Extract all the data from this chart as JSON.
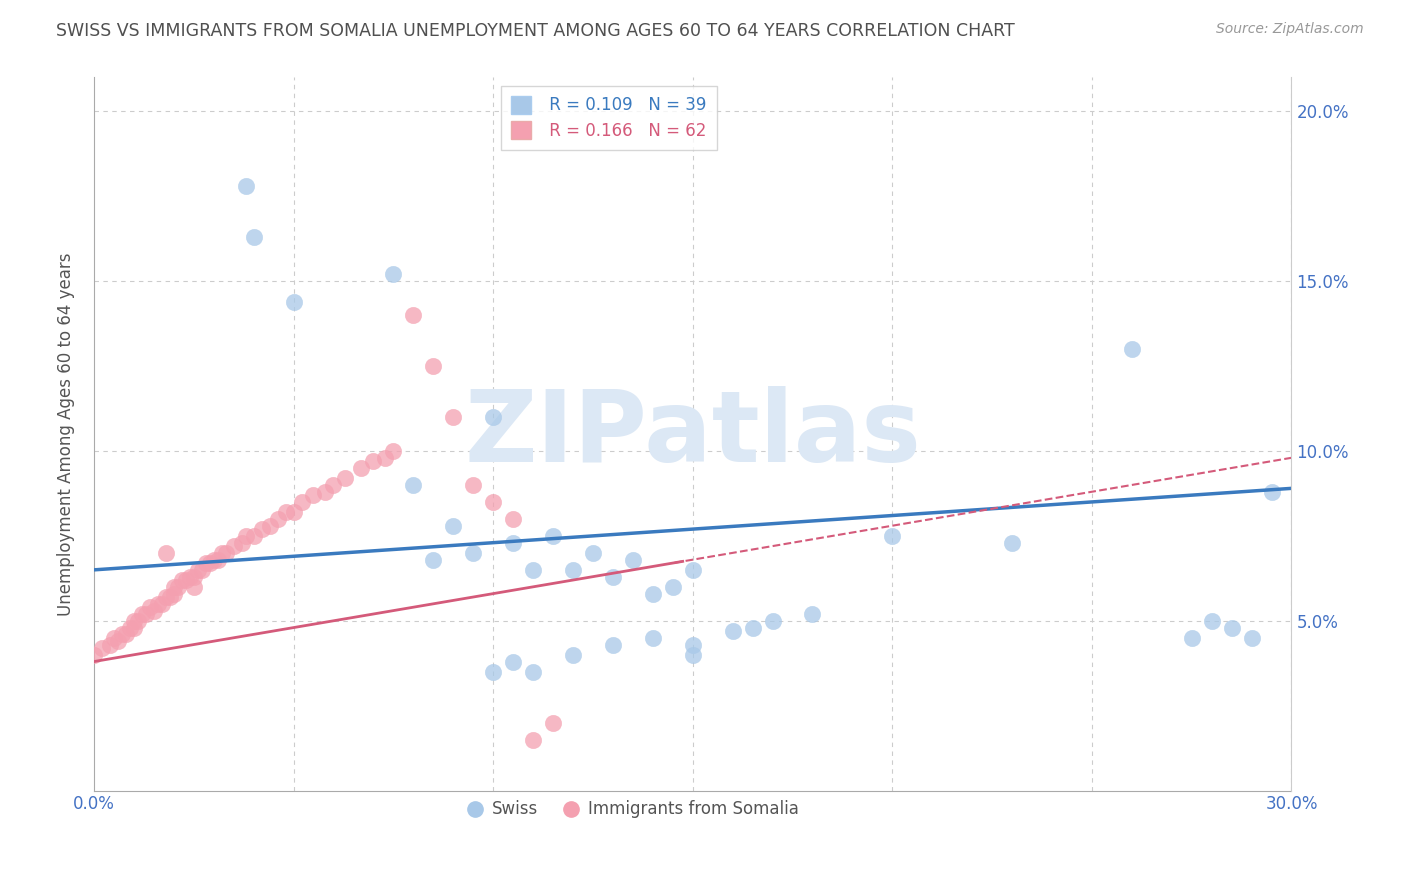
{
  "title": "SWISS VS IMMIGRANTS FROM SOMALIA UNEMPLOYMENT AMONG AGES 60 TO 64 YEARS CORRELATION CHART",
  "source": "Source: ZipAtlas.com",
  "ylabel": "Unemployment Among Ages 60 to 64 years",
  "xlim": [
    0,
    0.3
  ],
  "ylim": [
    0,
    0.21
  ],
  "xtick_positions": [
    0.0,
    0.3
  ],
  "xtick_labels": [
    "0.0%",
    "30.0%"
  ],
  "ytick_positions": [
    0.05,
    0.1,
    0.15,
    0.2
  ],
  "ytick_labels_right": [
    "5.0%",
    "10.0%",
    "15.0%",
    "20.0%"
  ],
  "swiss_color": "#a8c8e8",
  "somalia_color": "#f4a0b0",
  "swiss_line_color": "#3a7abf",
  "somalia_line_color": "#d45a7a",
  "background_color": "#ffffff",
  "grid_color": "#cccccc",
  "title_color": "#505050",
  "axis_label_color": "#4472c4",
  "watermark_color": "#dce8f5",
  "swiss_x": [
    0.038,
    0.04,
    0.05,
    0.075,
    0.08,
    0.08,
    0.085,
    0.09,
    0.095,
    0.1,
    0.1,
    0.105,
    0.105,
    0.115,
    0.12,
    0.125,
    0.125,
    0.13,
    0.13,
    0.14,
    0.145,
    0.15,
    0.155,
    0.16,
    0.165,
    0.17,
    0.175,
    0.18,
    0.2,
    0.205,
    0.23,
    0.26,
    0.275,
    0.28,
    0.285,
    0.29,
    0.295,
    0.15,
    0.11
  ],
  "swiss_y": [
    0.178,
    0.163,
    0.144,
    0.152,
    0.09,
    0.098,
    0.068,
    0.078,
    0.07,
    0.11,
    0.068,
    0.073,
    0.065,
    0.075,
    0.065,
    0.07,
    0.063,
    0.068,
    0.058,
    0.06,
    0.058,
    0.065,
    0.058,
    0.06,
    0.063,
    0.06,
    0.058,
    0.058,
    0.075,
    0.073,
    0.073,
    0.13,
    0.045,
    0.05,
    0.048,
    0.045,
    0.088,
    0.04,
    0.035
  ],
  "somalia_x": [
    0.0,
    0.002,
    0.004,
    0.005,
    0.006,
    0.007,
    0.008,
    0.009,
    0.01,
    0.01,
    0.011,
    0.012,
    0.013,
    0.014,
    0.015,
    0.016,
    0.017,
    0.018,
    0.019,
    0.02,
    0.02,
    0.021,
    0.022,
    0.023,
    0.024,
    0.025,
    0.026,
    0.027,
    0.028,
    0.029,
    0.03,
    0.031,
    0.032,
    0.033,
    0.035,
    0.037,
    0.038,
    0.04,
    0.042,
    0.044,
    0.046,
    0.048,
    0.05,
    0.052,
    0.055,
    0.058,
    0.06,
    0.063,
    0.067,
    0.07,
    0.073,
    0.075,
    0.08,
    0.085,
    0.09,
    0.095,
    0.1,
    0.105,
    0.11,
    0.115,
    0.018,
    0.025
  ],
  "somalia_y": [
    0.04,
    0.042,
    0.043,
    0.045,
    0.044,
    0.046,
    0.046,
    0.048,
    0.048,
    0.05,
    0.05,
    0.052,
    0.052,
    0.054,
    0.053,
    0.055,
    0.055,
    0.057,
    0.057,
    0.058,
    0.06,
    0.06,
    0.062,
    0.062,
    0.063,
    0.063,
    0.065,
    0.065,
    0.067,
    0.067,
    0.068,
    0.068,
    0.07,
    0.07,
    0.072,
    0.073,
    0.075,
    0.075,
    0.077,
    0.078,
    0.08,
    0.082,
    0.082,
    0.085,
    0.087,
    0.088,
    0.09,
    0.092,
    0.095,
    0.097,
    0.098,
    0.1,
    0.14,
    0.125,
    0.11,
    0.09,
    0.085,
    0.08,
    0.015,
    0.02,
    0.07,
    0.06
  ]
}
